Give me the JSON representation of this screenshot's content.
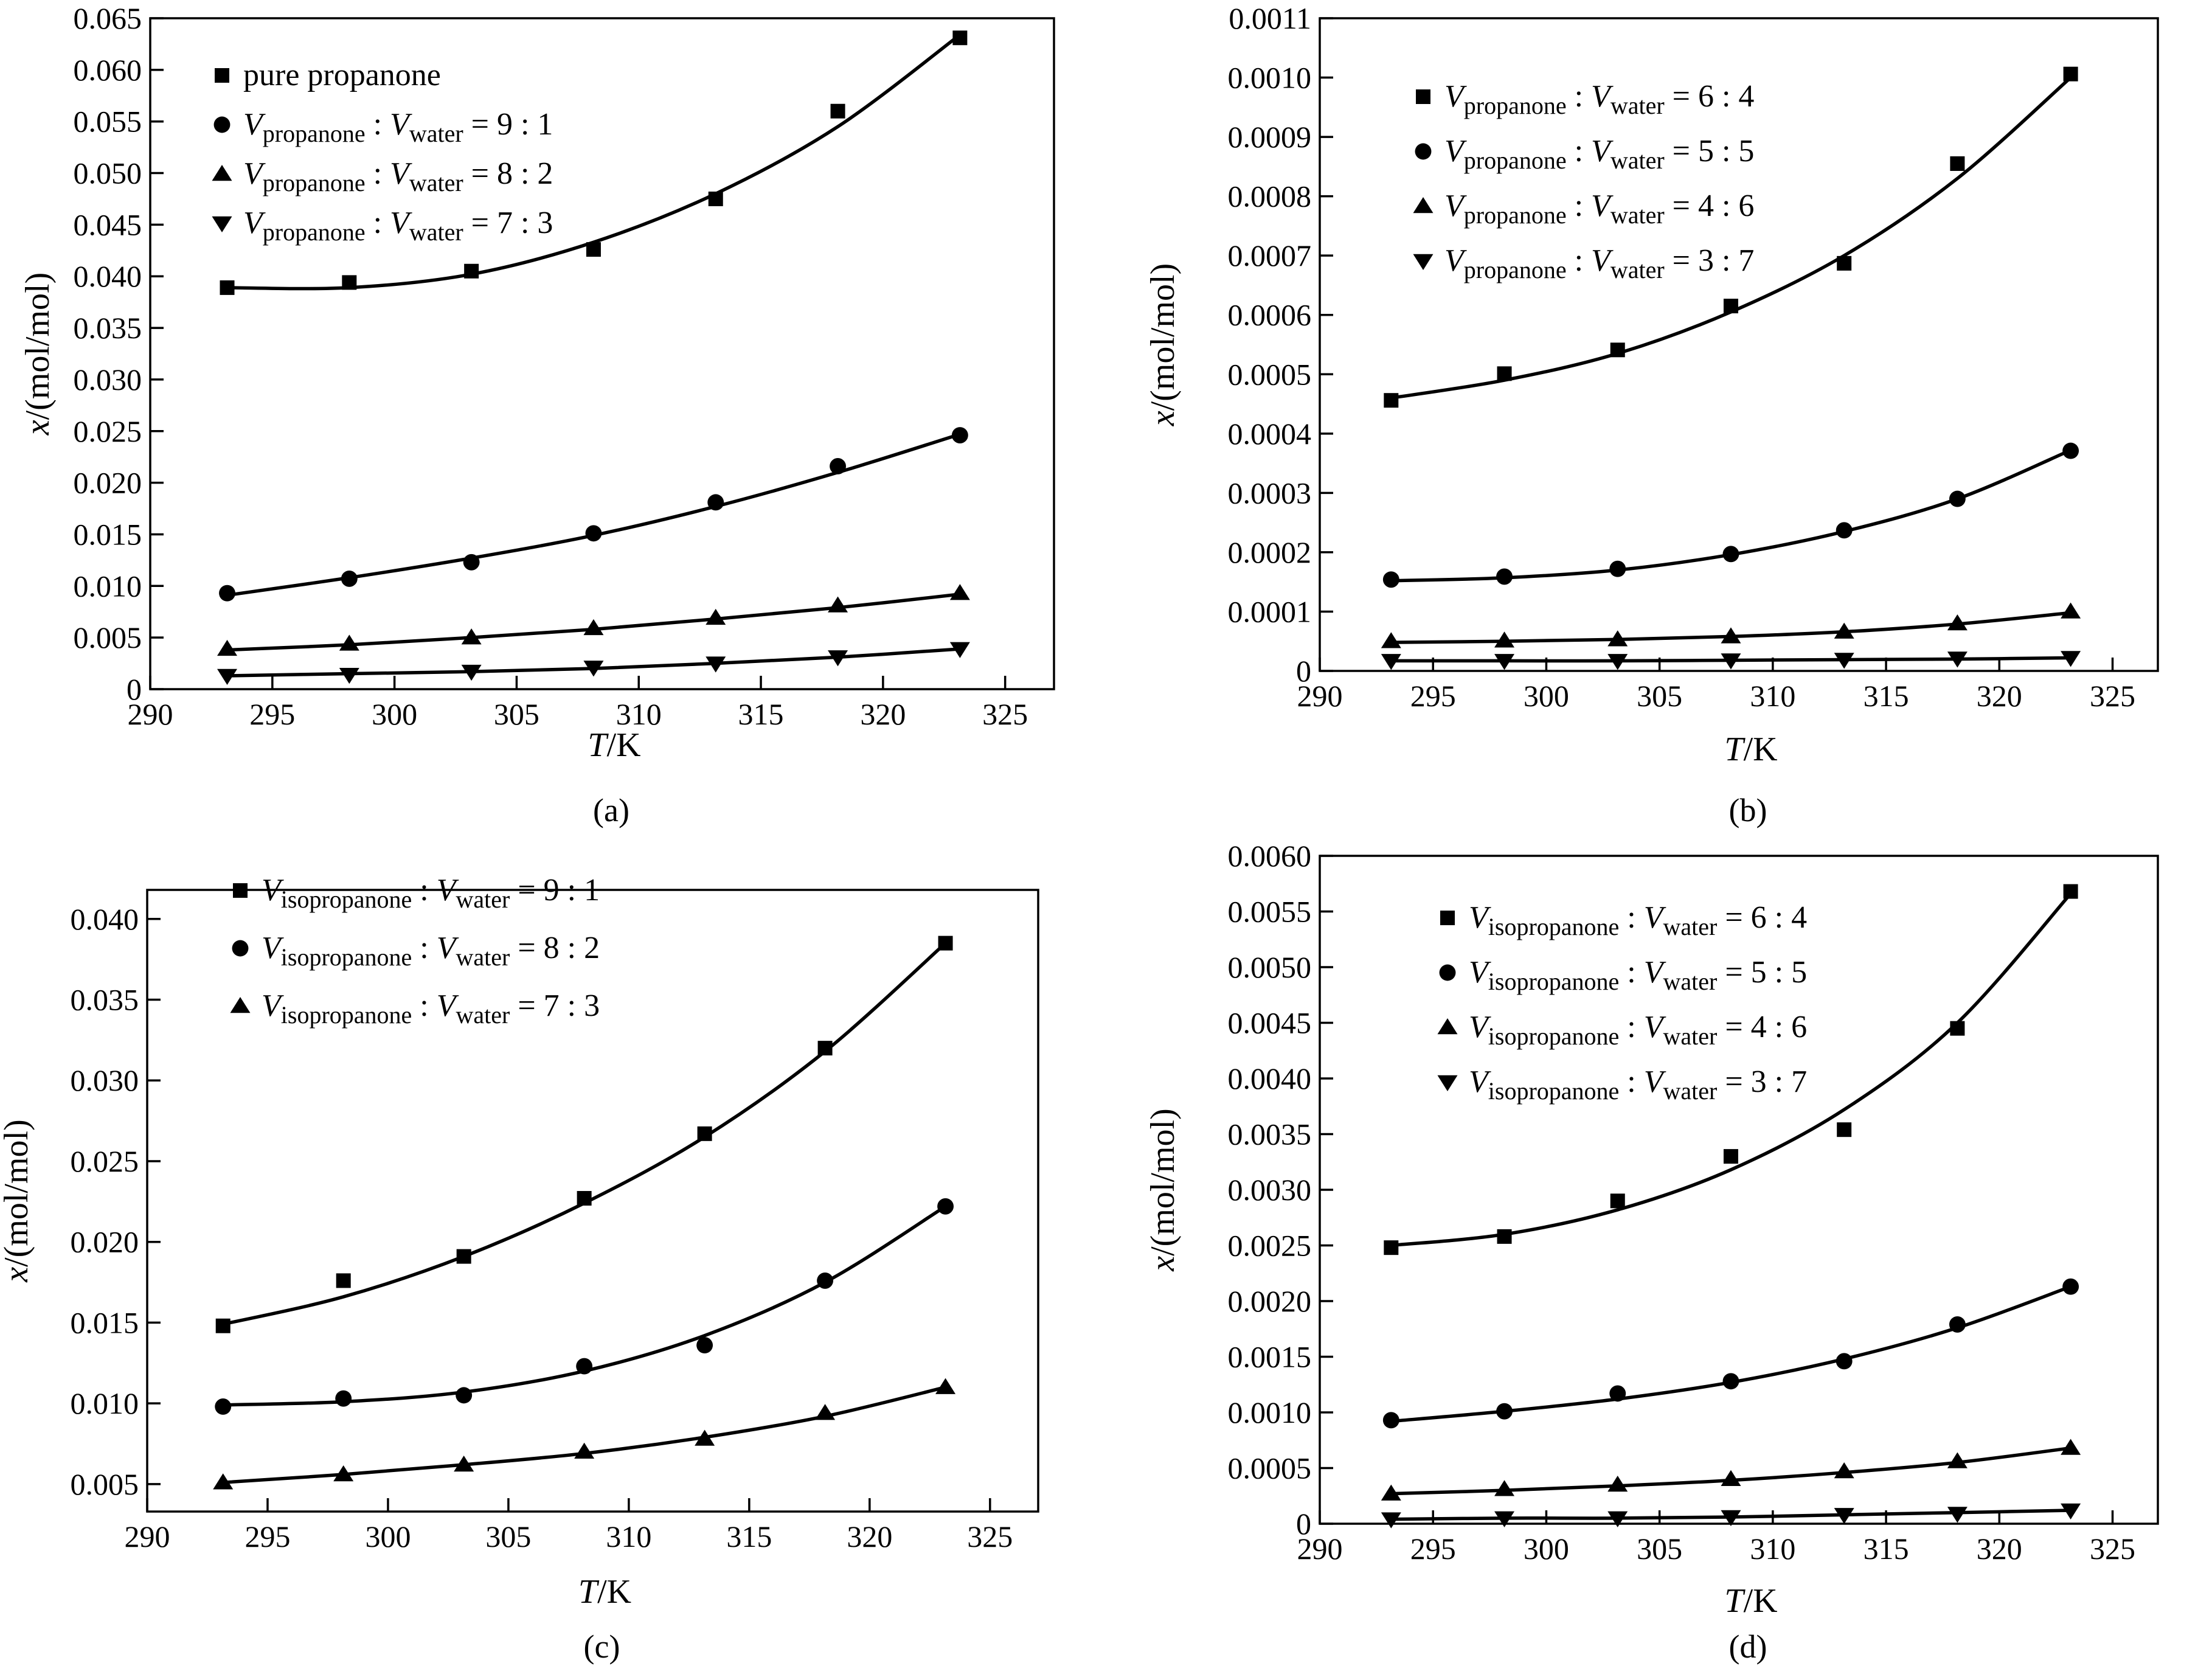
{
  "chart_data": [
    {
      "panel": "(a)",
      "type": "scatter",
      "xlabel_italic": "T",
      "xlabel_unit": "/K",
      "ylabel_italic": "x",
      "ylabel_unit": "/(mol/mol)",
      "xlim": [
        290,
        327
      ],
      "ylim": [
        0,
        0.065
      ],
      "xticks": [
        290,
        295,
        300,
        305,
        310,
        315,
        320,
        325
      ],
      "xtick_labels": [
        "290",
        "295",
        "300",
        "305",
        "310",
        "315",
        "320",
        "325"
      ],
      "yticks": [
        0,
        0.005,
        0.01,
        0.015,
        0.02,
        0.025,
        0.03,
        0.035,
        0.04,
        0.045,
        0.05,
        0.055,
        0.06,
        0.065
      ],
      "ytick_labels": [
        "0",
        "0.005",
        "0.010",
        "0.015",
        "0.020",
        "0.025",
        "0.030",
        "0.035",
        "0.040",
        "0.045",
        "0.050",
        "0.055",
        "0.060",
        "0.065"
      ],
      "x": [
        293.15,
        298.15,
        303.15,
        308.15,
        313.15,
        318.15,
        323.15
      ],
      "series": [
        {
          "name": "pure propanone",
          "marker": "square",
          "values": [
            0.0389,
            0.0394,
            0.0405,
            0.0426,
            0.0475,
            0.056,
            0.0631
          ],
          "fit": [
            0.0389,
            0.0389,
            0.0402,
            0.0433,
            0.048,
            0.0545,
            0.0634
          ]
        },
        {
          "name": "V_propanone : V_water = 9 : 1",
          "marker": "circle",
          "values": [
            0.0093,
            0.0107,
            0.0123,
            0.0151,
            0.0181,
            0.0216,
            0.0246
          ],
          "fit": [
            0.0091,
            0.0108,
            0.0127,
            0.0149,
            0.0177,
            0.021,
            0.0247
          ]
        },
        {
          "name": "V_propanone : V_water = 8 : 2",
          "marker": "triangle-up",
          "values": [
            0.0039,
            0.0044,
            0.005,
            0.0059,
            0.0069,
            0.0081,
            0.0093
          ],
          "fit": [
            0.0038,
            0.0043,
            0.005,
            0.0058,
            0.0068,
            0.0079,
            0.0092
          ]
        },
        {
          "name": "V_propanone : V_water = 7 : 3",
          "marker": "triangle-down",
          "values": [
            0.0013,
            0.0014,
            0.0017,
            0.0021,
            0.0025,
            0.0031,
            0.0039
          ],
          "fit": [
            0.0013,
            0.0015,
            0.0017,
            0.002,
            0.0025,
            0.0031,
            0.0039
          ]
        }
      ],
      "legend": [
        {
          "plain": "pure propanone"
        },
        {
          "sub": "propanone",
          "ratio": "9 : 1"
        },
        {
          "sub": "propanone",
          "ratio": "8 : 2"
        },
        {
          "sub": "propanone",
          "ratio": "7 : 3"
        }
      ]
    },
    {
      "panel": "(b)",
      "type": "scatter",
      "xlabel_italic": "T",
      "xlabel_unit": "/K",
      "ylabel_italic": "x",
      "ylabel_unit": "/(mol/mol)",
      "xlim": [
        290,
        327
      ],
      "ylim": [
        0,
        0.0011
      ],
      "xticks": [
        290,
        295,
        300,
        305,
        310,
        315,
        320,
        325
      ],
      "xtick_labels": [
        "290",
        "295",
        "300",
        "305",
        "310",
        "315",
        "320",
        "325"
      ],
      "yticks": [
        0,
        0.0001,
        0.0002,
        0.0003,
        0.0004,
        0.0005,
        0.0006,
        0.0007,
        0.0008,
        0.0009,
        0.001,
        0.0011
      ],
      "ytick_labels": [
        "0",
        "0.0001",
        "0.0002",
        "0.0003",
        "0.0004",
        "0.0005",
        "0.0006",
        "0.0007",
        "0.0008",
        "0.0009",
        "0.0010",
        "0.0011"
      ],
      "x": [
        293.15,
        298.15,
        303.15,
        308.15,
        313.15,
        318.15,
        323.15
      ],
      "series": [
        {
          "name": "V_propanone : V_water = 6 : 4",
          "marker": "square",
          "values": [
            0.000456,
            0.000501,
            0.000541,
            0.000615,
            0.000687,
            0.000855,
            0.001006
          ],
          "fit": [
            0.00046,
            0.00049,
            0.000535,
            0.000605,
            0.0007,
            0.00083,
            0.001
          ]
        },
        {
          "name": "V_propanone : V_water = 5 : 5",
          "marker": "circle",
          "values": [
            0.000154,
            0.000159,
            0.000172,
            0.000197,
            0.000237,
            0.00029,
            0.000371
          ],
          "fit": [
            0.000152,
            0.000157,
            0.00017,
            0.000196,
            0.000235,
            0.00029,
            0.000372
          ]
        },
        {
          "name": "V_propanone : V_water = 4 : 6",
          "marker": "triangle-up",
          "values": [
            5e-05,
            5.1e-05,
            5.3e-05,
            5.8e-05,
            6.6e-05,
            8e-05,
            0.0001
          ],
          "fit": [
            4.8e-05,
            5e-05,
            5.3e-05,
            5.8e-05,
            6.6e-05,
            7.9e-05,
            9.8e-05
          ]
        },
        {
          "name": "V_propanone : V_water = 3 : 7",
          "marker": "triangle-down",
          "values": [
            1.7e-05,
            1.7e-05,
            1.7e-05,
            1.8e-05,
            1.9e-05,
            2.1e-05,
            2.2e-05
          ],
          "fit": [
            1.7e-05,
            1.7e-05,
            1.7e-05,
            1.8e-05,
            1.9e-05,
            2e-05,
            2.2e-05
          ]
        }
      ],
      "legend": [
        {
          "sub": "propanone",
          "ratio": "6 : 4"
        },
        {
          "sub": "propanone",
          "ratio": "5 : 5"
        },
        {
          "sub": "propanone",
          "ratio": "4 : 6"
        },
        {
          "sub": "propanone",
          "ratio": "3 : 7"
        }
      ]
    },
    {
      "panel": "(c)",
      "type": "scatter",
      "xlabel_italic": "T",
      "xlabel_unit": "/K",
      "ylabel_italic": "x",
      "ylabel_unit": "/(mol/mol)",
      "xlim": [
        290,
        327
      ],
      "ylim": [
        0.0033,
        0.0418
      ],
      "xticks": [
        290,
        295,
        300,
        305,
        310,
        315,
        320,
        325
      ],
      "xtick_labels": [
        "290",
        "295",
        "300",
        "305",
        "310",
        "315",
        "320",
        "325"
      ],
      "yticks": [
        0.005,
        0.01,
        0.015,
        0.02,
        0.025,
        0.03,
        0.035,
        0.04
      ],
      "ytick_labels": [
        "0.005",
        "0.010",
        "0.015",
        "0.020",
        "0.025",
        "0.030",
        "0.035",
        "0.040"
      ],
      "x": [
        293.15,
        298.15,
        303.15,
        308.15,
        313.15,
        318.15,
        323.15
      ],
      "series": [
        {
          "name": "V_isopropanone : V_water = 9 : 1",
          "marker": "square",
          "values": [
            0.0148,
            0.0176,
            0.0191,
            0.0227,
            0.0267,
            0.032,
            0.0385
          ],
          "fit": [
            0.0149,
            0.0166,
            0.0191,
            0.0224,
            0.0265,
            0.0318,
            0.0385
          ]
        },
        {
          "name": "V_isopropanone : V_water = 8 : 2",
          "marker": "circle",
          "values": [
            0.0098,
            0.0103,
            0.0105,
            0.0123,
            0.0136,
            0.0176,
            0.0222
          ],
          "fit": [
            0.0099,
            0.0101,
            0.0107,
            0.012,
            0.0142,
            0.0175,
            0.0222
          ]
        },
        {
          "name": "V_isopropanone : V_water = 7 : 3",
          "marker": "triangle-up",
          "values": [
            0.0051,
            0.0056,
            0.0062,
            0.007,
            0.0078,
            0.0094,
            0.011
          ],
          "fit": [
            0.0051,
            0.0056,
            0.0062,
            0.0069,
            0.0079,
            0.0092,
            0.011
          ]
        }
      ],
      "legend": [
        {
          "sub": "isopropanone",
          "ratio": "9 : 1"
        },
        {
          "sub": "isopropanone",
          "ratio": "8 : 2"
        },
        {
          "sub": "isopropanone",
          "ratio": "7 : 3"
        }
      ]
    },
    {
      "panel": "(d)",
      "type": "scatter",
      "xlabel_italic": "T",
      "xlabel_unit": "/K",
      "ylabel_italic": "x",
      "ylabel_unit": "/(mol/mol)",
      "xlim": [
        290,
        327
      ],
      "ylim": [
        0,
        0.006
      ],
      "xticks": [
        290,
        295,
        300,
        305,
        310,
        315,
        320,
        325
      ],
      "xtick_labels": [
        "290",
        "295",
        "300",
        "305",
        "310",
        "315",
        "320",
        "325"
      ],
      "yticks": [
        0,
        0.0005,
        0.001,
        0.0015,
        0.002,
        0.0025,
        0.003,
        0.0035,
        0.004,
        0.0045,
        0.005,
        0.0055,
        0.006
      ],
      "ytick_labels": [
        "0",
        "0.0005",
        "0.0010",
        "0.0015",
        "0.0020",
        "0.0025",
        "0.0030",
        "0.0035",
        "0.0040",
        "0.0045",
        "0.0050",
        "0.0055",
        "0.0060"
      ],
      "x": [
        293.15,
        298.15,
        303.15,
        308.15,
        313.15,
        318.15,
        323.15
      ],
      "series": [
        {
          "name": "V_isopropanone : V_water = 6 : 4",
          "marker": "square",
          "values": [
            0.00248,
            0.00258,
            0.0029,
            0.0033,
            0.00354,
            0.00445,
            0.00568
          ],
          "fit": [
            0.0025,
            0.0026,
            0.00282,
            0.00318,
            0.00372,
            0.0045,
            0.00566
          ]
        },
        {
          "name": "V_isopropanone : V_water = 5 : 5",
          "marker": "circle",
          "values": [
            0.00093,
            0.00101,
            0.00117,
            0.00128,
            0.00146,
            0.00179,
            0.00213
          ],
          "fit": [
            0.00092,
            0.00101,
            0.00112,
            0.00127,
            0.00148,
            0.00176,
            0.00213
          ]
        },
        {
          "name": "V_isopropanone : V_water = 4 : 6",
          "marker": "triangle-up",
          "values": [
            0.00027,
            0.00031,
            0.00035,
            0.0004,
            0.00047,
            0.00056,
            0.00068
          ],
          "fit": [
            0.00027,
            0.0003,
            0.00034,
            0.00039,
            0.00046,
            0.00055,
            0.00068
          ]
        },
        {
          "name": "V_isopropanone : V_water = 3 : 7",
          "marker": "triangle-down",
          "values": [
            4e-05,
            5e-05,
            5e-05,
            6e-05,
            8e-05,
            9e-05,
            0.00012
          ],
          "fit": [
            4e-05,
            5e-05,
            5e-05,
            6e-05,
            8e-05,
            0.0001,
            0.00012
          ]
        }
      ],
      "legend": [
        {
          "sub": "isopropanone",
          "ratio": "6 : 4"
        },
        {
          "sub": "isopropanone",
          "ratio": "5 : 5"
        },
        {
          "sub": "isopropanone",
          "ratio": "4 : 6"
        },
        {
          "sub": "isopropanone",
          "ratio": "3 : 7"
        }
      ]
    }
  ],
  "legend_common": {
    "v": "V",
    "water_sub": "water",
    "equals": " = "
  },
  "captions": [
    "(a)",
    "(b)",
    "(c)",
    "(d)"
  ]
}
